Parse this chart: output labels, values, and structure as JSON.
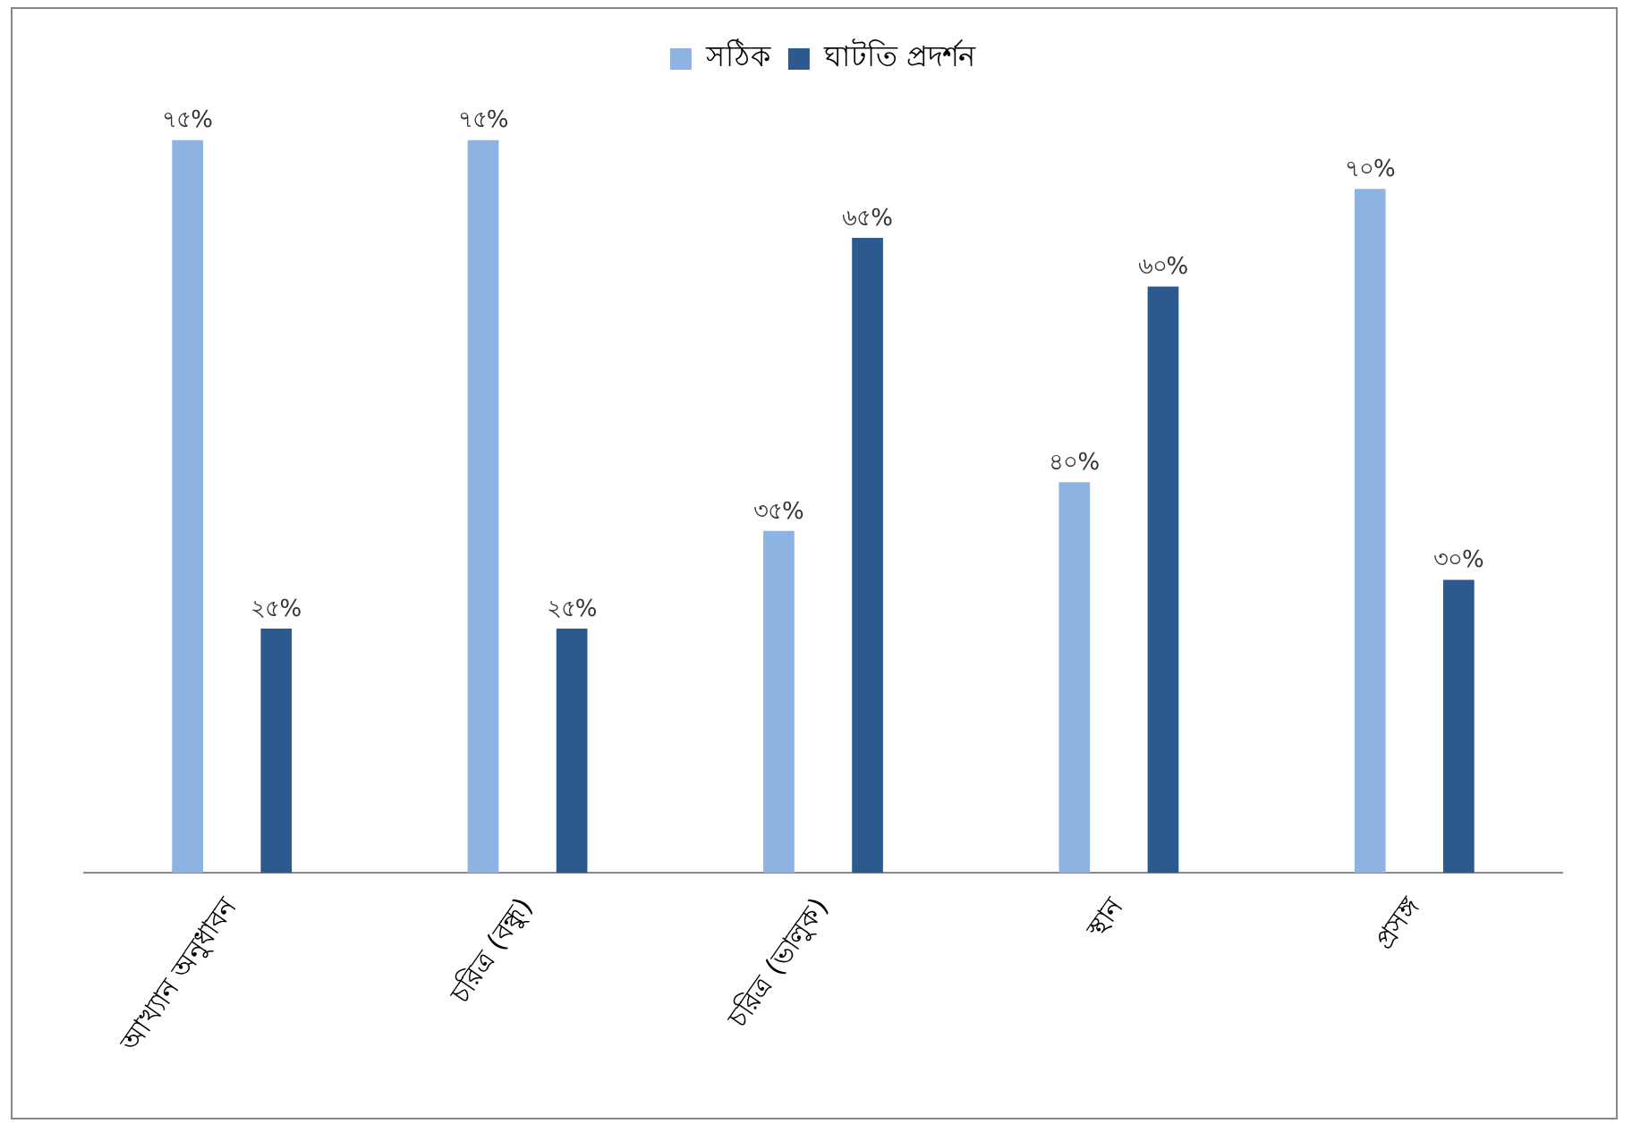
{
  "chart_data": {
    "type": "bar",
    "categories": [
      "আখ্যান অনুধাবন",
      "চরিত্র (বন্ধু)",
      "চরিত্র (ভালুক)",
      "স্থান",
      "প্রসঙ্গ"
    ],
    "series": [
      {
        "name": "সঠিক",
        "color": "#8db3e2",
        "values": [
          75,
          75,
          35,
          40,
          70
        ],
        "value_labels": [
          "৭৫%",
          "৭৫%",
          "৩৫%",
          "৪০%",
          "৭০%"
        ]
      },
      {
        "name": "ঘাটতি প্রদর্শন",
        "color": "#2c5a8f",
        "values": [
          25,
          25,
          65,
          60,
          30
        ],
        "value_labels": [
          "২৫%",
          "২৫%",
          "৬৫%",
          "৬০%",
          "৩০%"
        ]
      }
    ],
    "legend": "top",
    "grid": false
  }
}
